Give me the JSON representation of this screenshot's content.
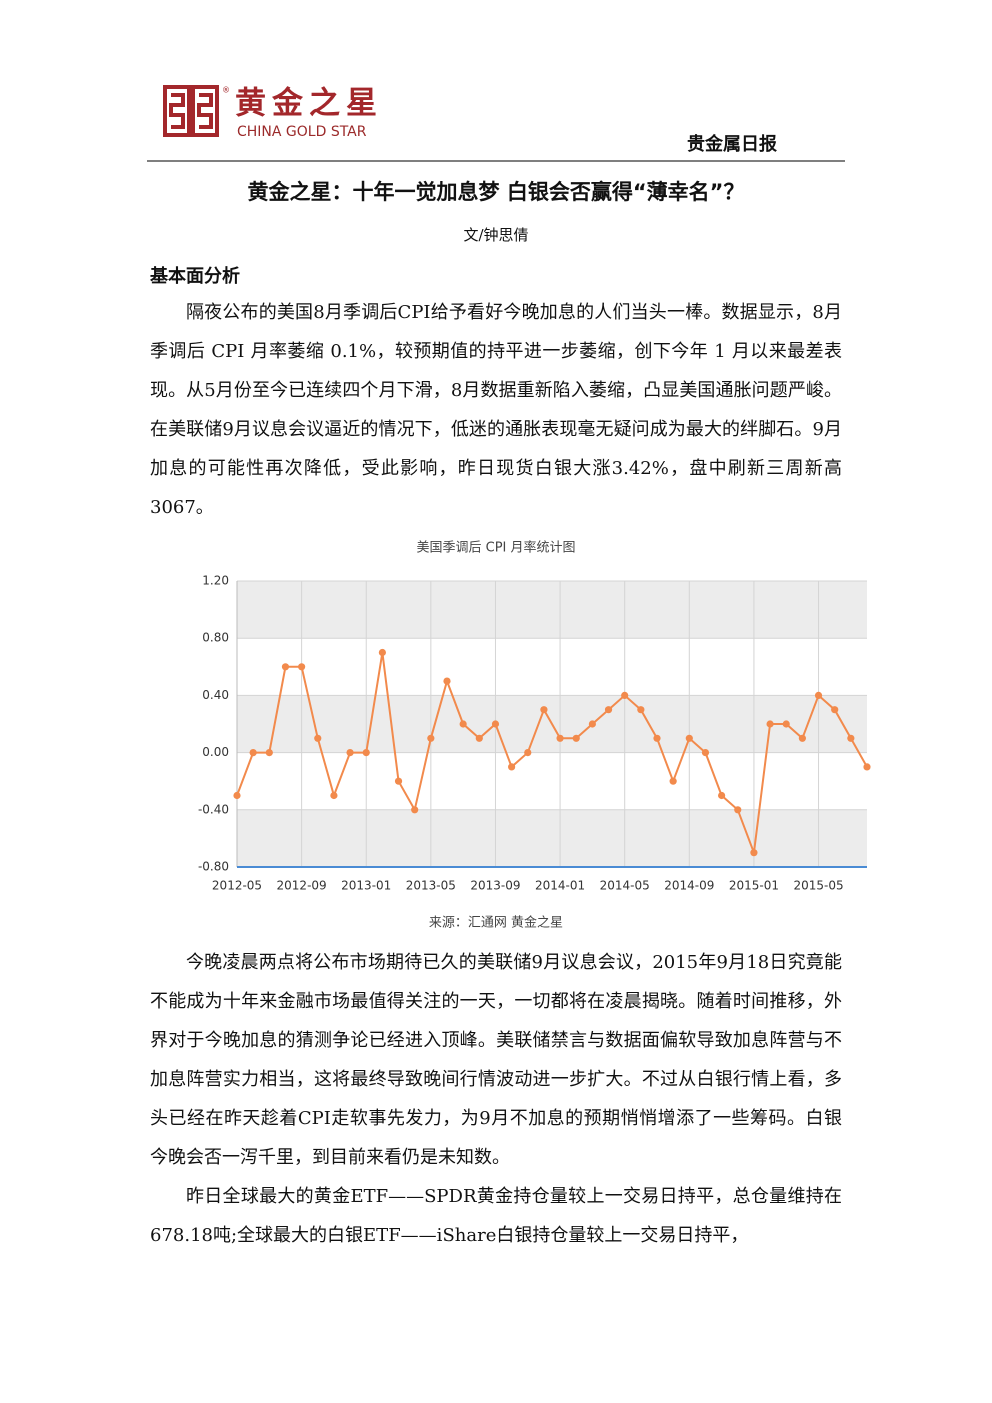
{
  "header": {
    "logo_cn": "黄金之星",
    "logo_registered": "®",
    "logo_en": "CHINA GOLD STAR",
    "report": "贵金属日报"
  },
  "article": {
    "title": "黄金之星：十年一觉加息梦 白银会否赢得“薄幸名”？",
    "author": "文/钟思倩",
    "section": "基本面分析",
    "paragraphs": [
      "隔夜公布的美国8月季调后CPI给予看好今晚加息的人们当头一棒。数据显示，8月季调后 CPI 月率萎缩 0.1%，较预期值的持平进一步萎缩，创下今年 1 月以来最差表现。从5月份至今已连续四个月下滑，8月数据重新陷入萎缩，凸显美国通胀问题严峻。在美联储9月议息会议逼近的情况下，低迷的通胀表现毫无疑问成为最大的绊脚石。9月加息的可能性再次降低，受此影响，昨日现货白银大涨3.42%，盘中刷新三周新高3067。",
      "今晚凌晨两点将公布市场期待已久的美联储9月议息会议，2015年9月18日究竟能不能成为十年来金融市场最值得关注的一天，一切都将在凌晨揭晓。随着时间推移，外界对于今晚加息的猜测争论已经进入顶峰。美联储禁言与数据面偏软导致加息阵营与不加息阵营实力相当，这将最终导致晚间行情波动进一步扩大。不过从白银行情上看，多头已经在昨天趁着CPI走软事先发力，为9月不加息的预期悄悄增添了一些筹码。白银今晚会否一泻千里，到目前来看仍是未知数。",
      "昨日全球最大的黄金ETF——SPDR黄金持仓量较上一交易日持平，总仓量维持在678.18吨;全球最大的白银ETF——iShare白银持仓量较上一交易日持平，"
    ]
  },
  "chart_data": {
    "type": "line",
    "title": "美国季调后 CPI 月率统计图",
    "source": "来源：汇通网 黄金之星",
    "categories": [
      "2012-05",
      null,
      null,
      null,
      "2012-09",
      null,
      null,
      null,
      "2013-01",
      null,
      null,
      null,
      "2013-05",
      null,
      null,
      null,
      "2013-09",
      null,
      null,
      null,
      "2014-01",
      null,
      null,
      null,
      "2014-05",
      null,
      null,
      null,
      "2014-09",
      null,
      null,
      null,
      "2015-01",
      null,
      null,
      null,
      "2015-05",
      null,
      null,
      null
    ],
    "values": [
      -0.3,
      0.0,
      0.0,
      0.6,
      0.6,
      0.1,
      -0.3,
      0.0,
      0.0,
      0.7,
      -0.2,
      -0.4,
      0.1,
      0.5,
      0.2,
      0.1,
      0.2,
      -0.1,
      0.0,
      0.3,
      0.1,
      0.1,
      0.2,
      0.3,
      0.4,
      0.3,
      0.1,
      -0.2,
      0.1,
      0.0,
      -0.3,
      -0.4,
      -0.7,
      0.2,
      0.2,
      0.1,
      0.4,
      0.3,
      0.1,
      -0.1
    ],
    "color": "#f28a4c",
    "ylim": [
      -0.8,
      1.2
    ],
    "yticks": [
      {
        "value": -0.8,
        "label": "-0.80"
      },
      {
        "value": -0.4,
        "label": "-0.40"
      },
      {
        "value": 0,
        "label": "0.00"
      },
      {
        "value": 0.4,
        "label": "0.40"
      },
      {
        "value": 0.8,
        "label": "0.80"
      },
      {
        "value": 1.2,
        "label": "1.20"
      }
    ],
    "grid": true
  }
}
